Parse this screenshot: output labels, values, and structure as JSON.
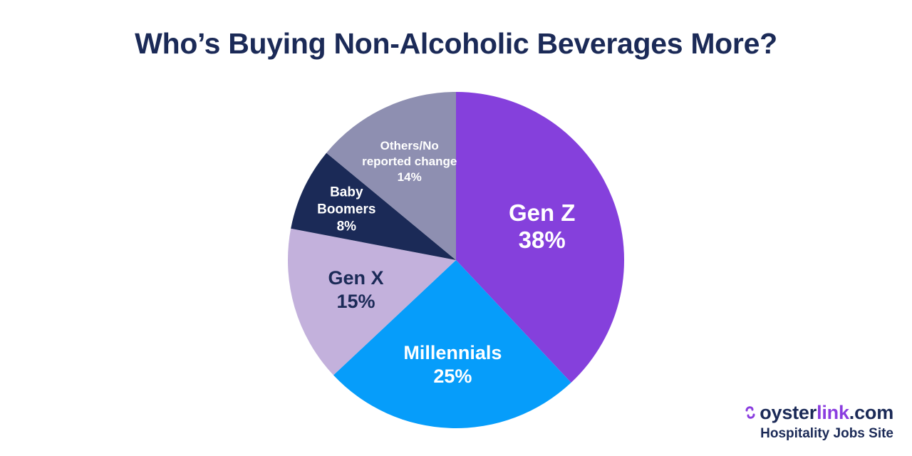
{
  "chart_data": {
    "type": "pie",
    "title": "Who’s Buying Non-Alcoholic Beverages More?",
    "slices": [
      {
        "name": "Gen Z",
        "label_lines": [
          "Gen Z"
        ],
        "value": 38,
        "value_label": "38%",
        "color": "#8540dc",
        "text_color": "#ffffff",
        "label_size": "large"
      },
      {
        "name": "Millennials",
        "label_lines": [
          "Millennials"
        ],
        "value": 25,
        "value_label": "25%",
        "color": "#069dfa",
        "text_color": "#ffffff",
        "label_size": "medium"
      },
      {
        "name": "Gen X",
        "label_lines": [
          "Gen X"
        ],
        "value": 15,
        "value_label": "15%",
        "color": "#c3b1dc",
        "text_color": "#1b2a57",
        "label_size": "medium"
      },
      {
        "name": "Baby Boomers",
        "label_lines": [
          "Baby",
          "Boomers"
        ],
        "value": 8,
        "value_label": "8%",
        "color": "#1b2a57",
        "text_color": "#ffffff",
        "label_size": "small"
      },
      {
        "name": "Others/No reported change",
        "label_lines": [
          "Others/No",
          "reported change"
        ],
        "value": 14,
        "value_label": "14%",
        "color": "#8e8fb1",
        "text_color": "#ffffff",
        "label_size": "xsmall"
      }
    ],
    "start_direction": "12 o'clock",
    "direction": "clockwise",
    "legend": "none"
  },
  "brand": {
    "name_prefix": "oyster",
    "name_link": "link",
    "name_suffix": ".com",
    "tagline": "Hospitality Jobs Site",
    "logo_icon": "oyster-swirl-icon",
    "accent_color": "#8a3ddf",
    "text_color": "#1b2a57"
  }
}
